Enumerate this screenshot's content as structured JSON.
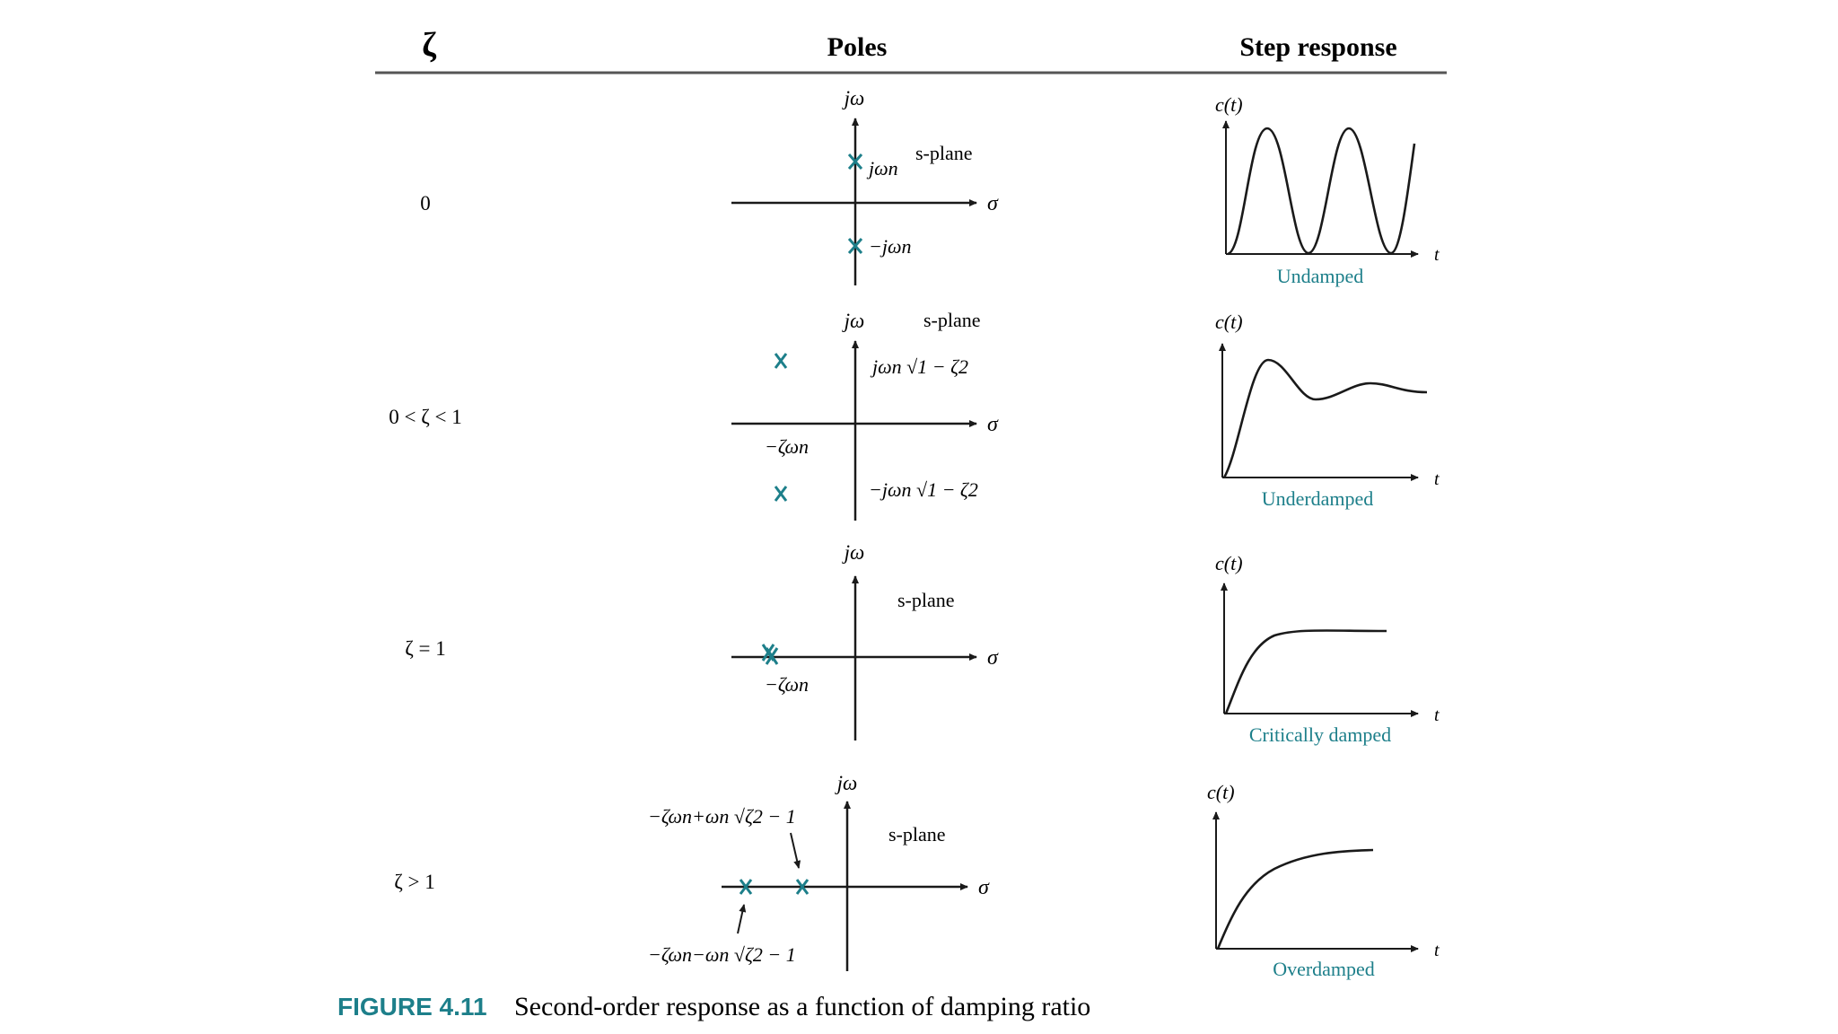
{
  "header": {
    "zeta": "ζ",
    "poles": "Poles",
    "step": "Step response"
  },
  "rows": [
    {
      "zeta_label": "0",
      "s_plane": "s-plane",
      "pole_top": "jωn",
      "pole_bottom": "−jωn",
      "ct": "c(t)",
      "t": "t",
      "response_label": "Undamped"
    },
    {
      "zeta_label": "0 < ζ < 1",
      "s_plane": "s-plane",
      "pole_top": "jωn √1 − ζ2",
      "pole_bottom": "−jωn √1 − ζ2",
      "real_part": "−ζωn",
      "ct": "c(t)",
      "t": "t",
      "response_label": "Underdamped"
    },
    {
      "zeta_label": "ζ = 1",
      "s_plane": "s-plane",
      "real_part": "−ζωn",
      "ct": "c(t)",
      "t": "t",
      "response_label": "Critically damped"
    },
    {
      "zeta_label": "ζ > 1",
      "s_plane": "s-plane",
      "pole_right": "−ζωn+ωn √ζ2 − 1",
      "pole_left": "−ζωn−ωn √ζ2 − 1",
      "ct": "c(t)",
      "t": "t",
      "response_label": "Overdamped"
    }
  ],
  "axes": {
    "jw": "jω",
    "sigma": "σ"
  },
  "caption": {
    "label": "FIGURE 4.11",
    "text": "Second-order response as a function of damping ratio"
  },
  "colors": {
    "accent": "#1d7f8a",
    "ink": "#1a1a1a",
    "rule": "#555555"
  }
}
